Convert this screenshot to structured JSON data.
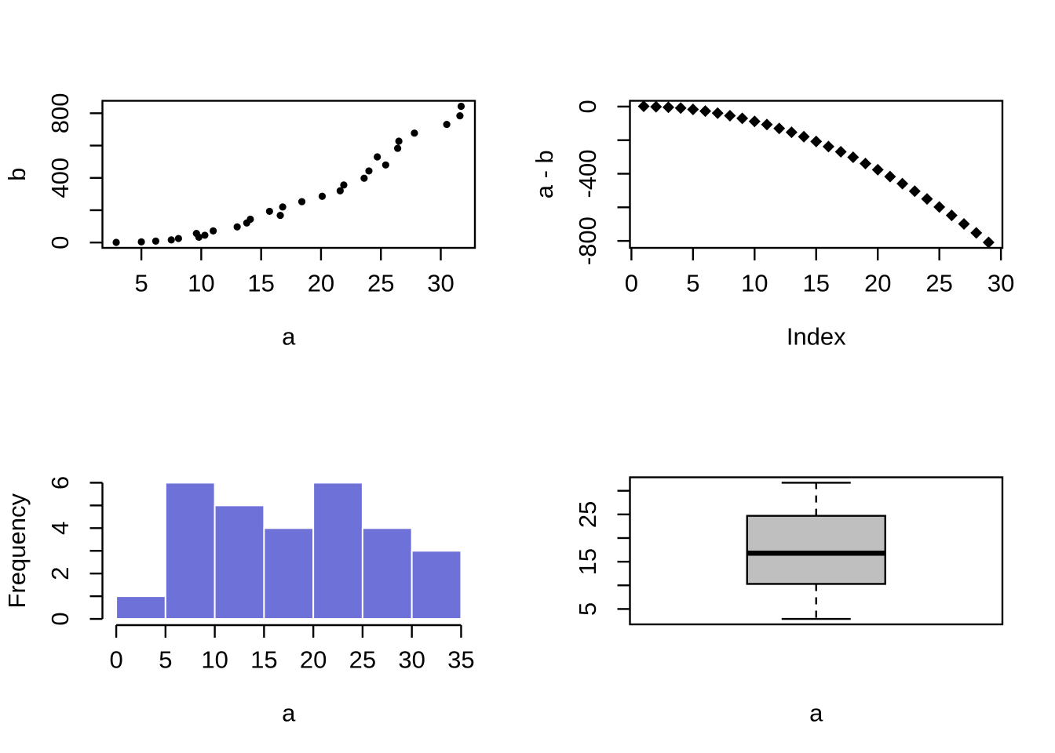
{
  "figure": {
    "background": "#ffffff",
    "foreground": "#000000",
    "panels": [
      {
        "id": "scatter-b-vs-a",
        "type": "scatter",
        "marker": "circle",
        "xlabel": "a",
        "ylabel": "b",
        "x": [
          2.9,
          5.0,
          6.2,
          7.5,
          8.1,
          9.6,
          9.8,
          10.3,
          11.0,
          13.0,
          13.8,
          14.1,
          15.7,
          16.6,
          16.8,
          18.4,
          20.1,
          21.6,
          21.9,
          23.6,
          24.0,
          24.7,
          25.4,
          26.4,
          26.5,
          27.8,
          30.5,
          31.6,
          31.7
        ],
        "y": [
          1,
          4,
          9,
          16,
          25,
          56,
          33,
          45,
          72,
          97,
          121,
          144,
          193,
          168,
          220,
          253,
          286,
          320,
          356,
          398,
          443,
          530,
          480,
          583,
          627,
          677,
          731,
          784,
          843
        ],
        "xlim": [
          1.75,
          32.85
        ],
        "ylim": [
          -33,
          877
        ],
        "x_ticks": [
          5,
          10,
          15,
          20,
          25,
          30
        ],
        "x_tick_labels": [
          "5",
          "10",
          "15",
          "20",
          "25",
          "30"
        ],
        "y_ticks": [
          0,
          200,
          400,
          600,
          800
        ],
        "y_tick_labels": [
          "0",
          "",
          "400",
          "",
          "800"
        ],
        "point_color": "#000000"
      },
      {
        "id": "scatter-a-minus-b-vs-index",
        "type": "scatter",
        "marker": "diamond",
        "xlabel": "Index",
        "ylabel": "a - b",
        "x": [
          1,
          2,
          3,
          4,
          5,
          6,
          7,
          8,
          9,
          10,
          11,
          12,
          13,
          14,
          15,
          16,
          17,
          18,
          19,
          20,
          21,
          22,
          23,
          24,
          25,
          26,
          27,
          28,
          29
        ],
        "y": [
          2,
          -1,
          -4,
          -9,
          -17,
          -27,
          -39,
          -54,
          -70,
          -88,
          -107,
          -130,
          -153,
          -179,
          -208,
          -238,
          -269,
          -302,
          -339,
          -376,
          -417,
          -459,
          -504,
          -550,
          -598,
          -648,
          -699,
          -752,
          -809
        ],
        "xlim": [
          -0.12,
          30.12
        ],
        "ylim": [
          -841.5,
          34.5
        ],
        "x_ticks": [
          0,
          5,
          10,
          15,
          20,
          25,
          30
        ],
        "x_tick_labels": [
          "0",
          "5",
          "10",
          "15",
          "20",
          "25",
          "30"
        ],
        "y_ticks": [
          0,
          -200,
          -400,
          -600,
          -800
        ],
        "y_tick_labels": [
          "0",
          "",
          "-400",
          "",
          "-800"
        ],
        "point_color": "#000000"
      },
      {
        "id": "histogram-a",
        "type": "histogram",
        "xlabel": "a",
        "ylabel": "Frequency",
        "bin_edges": [
          0,
          5,
          10,
          15,
          20,
          25,
          30,
          35
        ],
        "counts": [
          1,
          6,
          5,
          4,
          6,
          4,
          3
        ],
        "xlim": [
          -1.4,
          36.4
        ],
        "ylim": [
          -0.24,
          6.24
        ],
        "x_ticks": [
          0,
          5,
          10,
          15,
          20,
          25,
          30,
          35
        ],
        "x_tick_labels": [
          "0",
          "5",
          "10",
          "15",
          "20",
          "25",
          "30",
          "35"
        ],
        "y_ticks": [
          0,
          1,
          2,
          3,
          4,
          5,
          6
        ],
        "y_tick_labels": [
          "0",
          "",
          "2",
          "",
          "4",
          "",
          "6"
        ],
        "bar_fill": "#6e71d8",
        "bar_border": "#ffffff"
      },
      {
        "id": "boxplot-a",
        "type": "boxplot",
        "xlabel": "a",
        "ylabel": "",
        "stats": {
          "min": 2.9,
          "q1": 10.3,
          "median": 16.8,
          "q3": 24.7,
          "max": 31.7
        },
        "ylim": [
          1.75,
          32.85
        ],
        "y_ticks": [
          5,
          10,
          15,
          20,
          25,
          30
        ],
        "y_tick_labels": [
          "5",
          "",
          "15",
          "",
          "25",
          ""
        ],
        "box_fill": "#bfbfbf",
        "box_border": "#000000"
      }
    ]
  }
}
